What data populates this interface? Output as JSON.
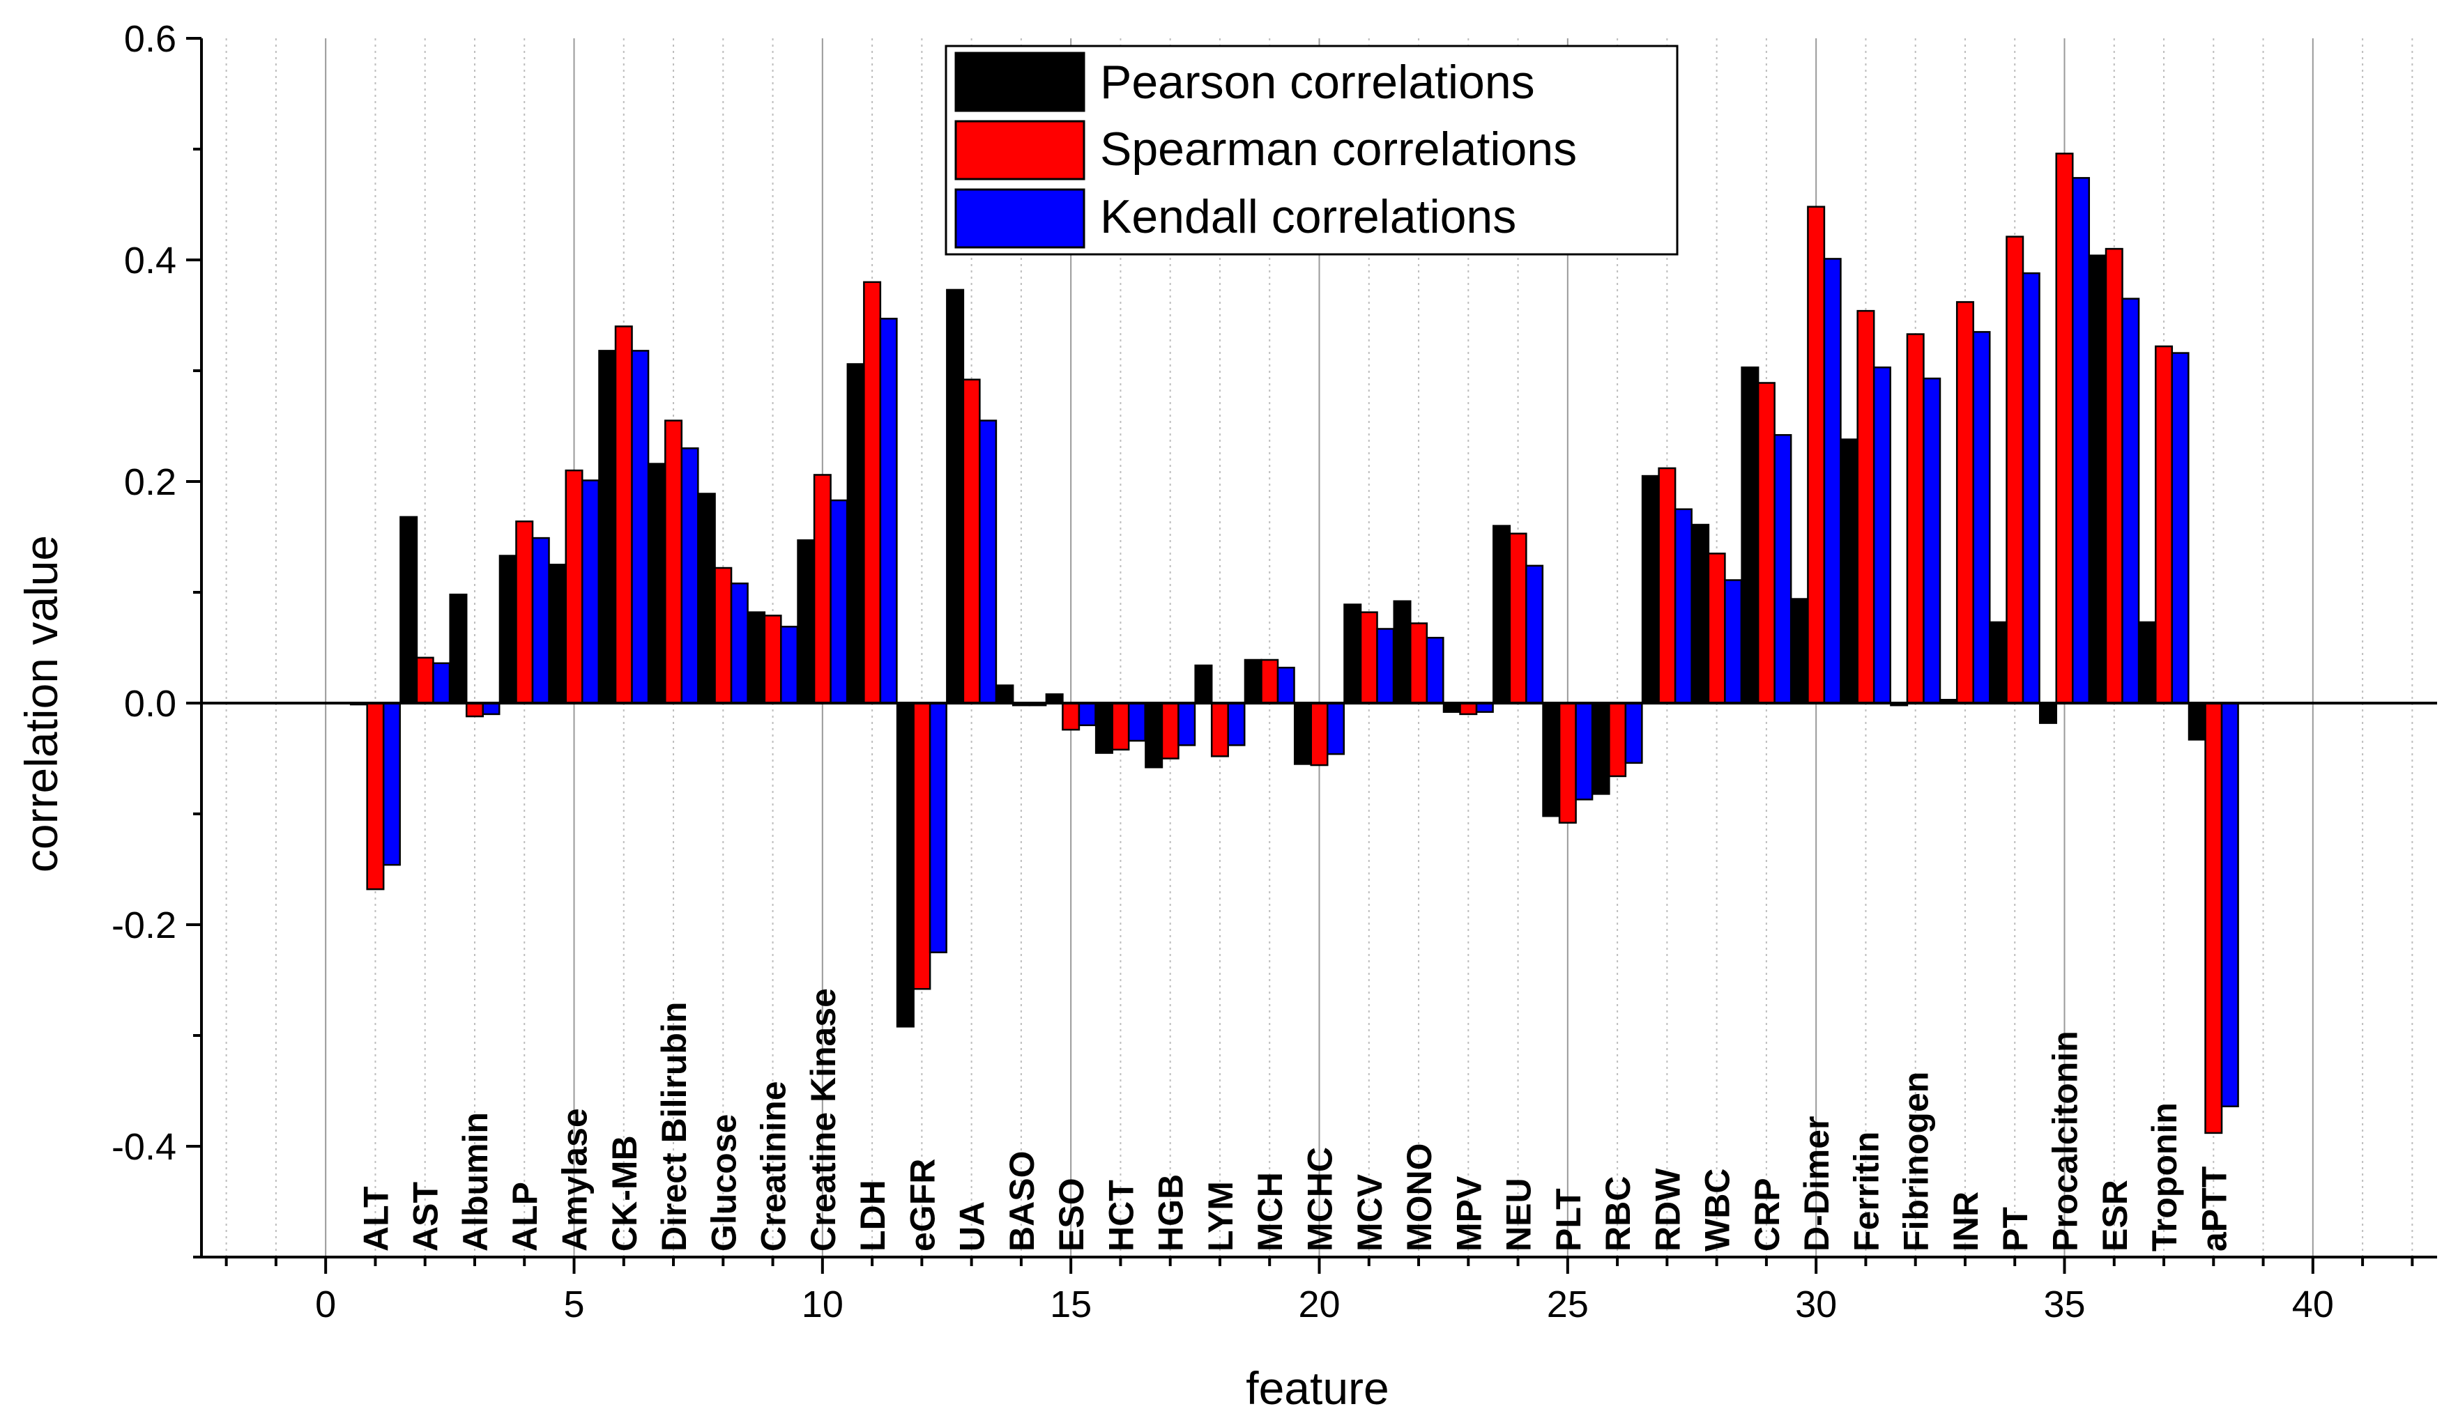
{
  "chart_data": {
    "type": "bar",
    "xlabel": "feature",
    "ylabel": "correlation value",
    "xlim": [
      -2.5,
      42.5
    ],
    "ylim": [
      -0.5,
      0.6
    ],
    "x_major_ticks": [
      0,
      5,
      10,
      15,
      20,
      25,
      30,
      35,
      40
    ],
    "x_tick_labels": [
      "0",
      "5",
      "10",
      "15",
      "20",
      "25",
      "30",
      "35",
      "40"
    ],
    "y_major_ticks": [
      -0.4,
      -0.2,
      0.0,
      0.2,
      0.4,
      0.6
    ],
    "y_tick_labels": [
      "-0.4",
      "-0.2",
      "0.0",
      "0.2",
      "0.4",
      "0.6"
    ],
    "grid": "vertical lines at major x ticks, dotted lines at minor x ticks",
    "legend_position": "top-center",
    "x": [
      1,
      2,
      3,
      4,
      5,
      6,
      7,
      8,
      9,
      10,
      11,
      12,
      13,
      14,
      15,
      16,
      17,
      18,
      19,
      20,
      21,
      22,
      23,
      24,
      25,
      26,
      27,
      28,
      29,
      30,
      31,
      32,
      33,
      34,
      35,
      36,
      37,
      38
    ],
    "categories": [
      "ALT",
      "AST",
      "Albumin",
      "ALP",
      "Amylase",
      "CK-MB",
      "Direct Bilirubin",
      "Glucose",
      "Creatinine",
      "Creatine Kinase",
      "LDH",
      "eGFR",
      "UA",
      "BASO",
      "ESO",
      "HCT",
      "HGB",
      "LYM",
      "MCH",
      "MCHC",
      "MCV",
      "MONO",
      "MPV",
      "NEU",
      "PLT",
      "RBC",
      "RDW",
      "WBC",
      "CRP",
      "D-Dimer",
      "Ferritin",
      "Fibrinogen",
      "INR",
      "PT",
      "Procalcitonin",
      "ESR",
      "Troponin",
      "aPTT"
    ],
    "series": [
      {
        "name": "Pearson correlations",
        "color": "#000000",
        "values": [
          0.0,
          0.168,
          0.098,
          0.133,
          0.125,
          0.318,
          0.216,
          0.189,
          0.082,
          0.147,
          0.306,
          -0.292,
          0.373,
          0.016,
          0.008,
          -0.045,
          -0.058,
          0.034,
          0.039,
          -0.055,
          0.089,
          0.092,
          -0.008,
          0.16,
          -0.102,
          -0.082,
          0.205,
          0.161,
          0.303,
          0.094,
          0.238,
          -0.002,
          0.003,
          0.073,
          -0.018,
          0.404,
          0.073,
          -0.033
        ]
      },
      {
        "name": "Spearman correlations",
        "color": "#ff0000",
        "values": [
          -0.168,
          0.041,
          -0.012,
          0.164,
          0.21,
          0.34,
          0.255,
          0.122,
          0.079,
          0.206,
          0.38,
          -0.258,
          0.292,
          -0.002,
          -0.024,
          -0.042,
          -0.05,
          -0.048,
          0.039,
          -0.056,
          0.082,
          0.072,
          -0.01,
          0.153,
          -0.108,
          -0.066,
          0.212,
          0.135,
          0.289,
          0.448,
          0.354,
          0.333,
          0.362,
          0.421,
          0.496,
          0.41,
          0.322,
          -0.388
        ]
      },
      {
        "name": "Kendall correlations",
        "color": "#0000ff",
        "values": [
          -0.146,
          0.036,
          -0.01,
          0.149,
          0.201,
          0.318,
          0.23,
          0.108,
          0.069,
          0.183,
          0.347,
          -0.225,
          0.255,
          -0.002,
          -0.02,
          -0.034,
          -0.038,
          -0.038,
          0.032,
          -0.046,
          0.067,
          0.059,
          -0.008,
          0.124,
          -0.087,
          -0.054,
          0.175,
          0.111,
          0.242,
          0.401,
          0.303,
          0.293,
          0.335,
          0.388,
          0.474,
          0.365,
          0.316,
          -0.364
        ]
      }
    ]
  }
}
